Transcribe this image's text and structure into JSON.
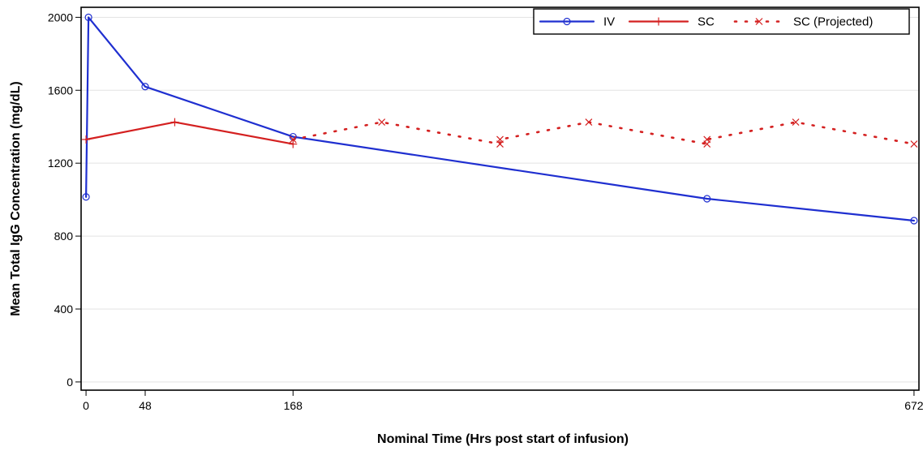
{
  "chart_data": {
    "type": "line",
    "title": "",
    "xlabel": "Nominal Time (Hrs post start of infusion)",
    "ylabel": "Mean Total IgG Concentration (mg/dL)",
    "xlim": [
      -4,
      676
    ],
    "ylim": [
      -45,
      2055
    ],
    "x_ticks": [
      0,
      48,
      168,
      672
    ],
    "y_ticks": [
      0,
      400,
      800,
      1200,
      1600,
      2000
    ],
    "grid": "horizontal",
    "legend_position": "top-right",
    "series": [
      {
        "name": "IV",
        "color": "#1f2fd0",
        "line_style": "solid",
        "marker": "circle",
        "points": [
          [
            0,
            1015
          ],
          [
            2,
            2000
          ],
          [
            48,
            1620
          ],
          [
            168,
            1345
          ],
          [
            504,
            1005
          ],
          [
            672,
            885
          ]
        ]
      },
      {
        "name": "SC",
        "color": "#d42020",
        "line_style": "solid",
        "marker": "plus",
        "points": [
          [
            0,
            1330
          ],
          [
            72,
            1425
          ],
          [
            168,
            1305
          ]
        ]
      },
      {
        "name": "SC (Projected)",
        "color": "#d42020",
        "line_style": "dotted",
        "marker": "x",
        "points": [
          [
            168,
            1330
          ],
          [
            240,
            1425
          ],
          [
            336,
            1305
          ],
          [
            336,
            1330
          ],
          [
            408,
            1425
          ],
          [
            504,
            1305
          ],
          [
            504,
            1330
          ],
          [
            576,
            1425
          ],
          [
            672,
            1305
          ]
        ]
      }
    ]
  }
}
